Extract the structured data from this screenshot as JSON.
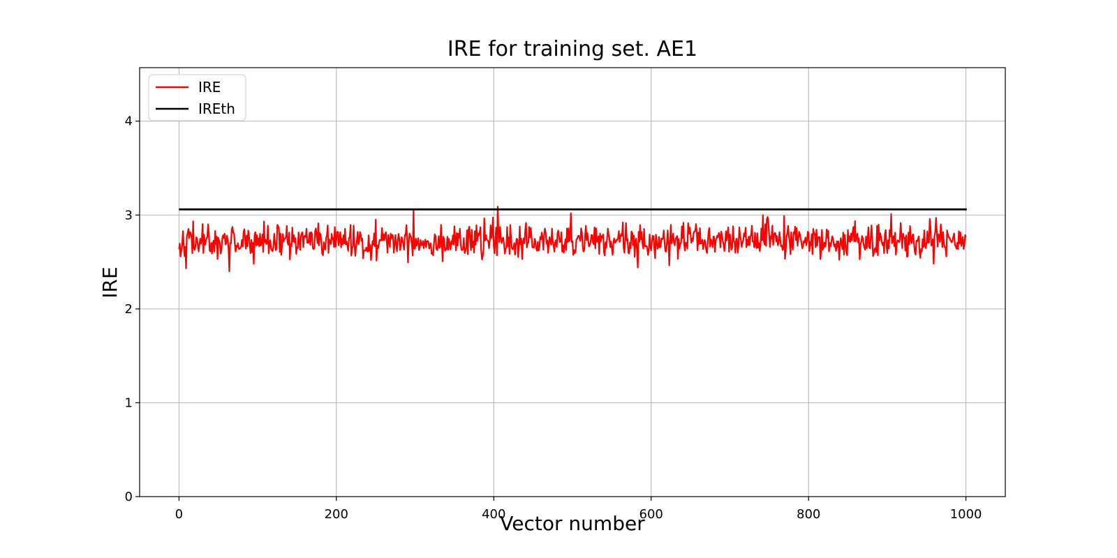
{
  "colors": {
    "ire_line": "#ff0000",
    "ireth_line": "#000000",
    "grid": "#b4b4b4",
    "axis": "#000000",
    "legend_border": "#cccccc",
    "background": "#ffffff",
    "text": "#000000"
  },
  "chart_data": {
    "type": "line",
    "title": "IRE for training set. AE1",
    "xlabel": "Vector number",
    "ylabel": "IRE",
    "xlim": [
      -50,
      1050
    ],
    "ylim": [
      0,
      4.57
    ],
    "xticks": [
      0,
      200,
      400,
      600,
      800,
      1000
    ],
    "yticks": [
      0,
      1,
      2,
      3,
      4
    ],
    "grid": true,
    "legend_position": "upper left",
    "series": [
      {
        "name": "IRE",
        "type": "noisy_line",
        "color": "#ff0000",
        "x_start": 0,
        "x_end": 1000,
        "n_points": 1001,
        "mean": 2.72,
        "std": 0.088,
        "clip": [
          2.43,
          2.99
        ],
        "seed": 42,
        "spikes": [
          [
            64,
            2.4
          ],
          [
            95,
            2.48
          ],
          [
            298,
            3.05
          ],
          [
            405,
            3.09
          ],
          [
            498,
            3.02
          ],
          [
            583,
            2.44
          ],
          [
            742,
            3.0
          ],
          [
            748,
            2.98
          ],
          [
            769,
            2.99
          ],
          [
            905,
            3.01
          ],
          [
            962,
            2.97
          ]
        ]
      },
      {
        "name": "IREth",
        "type": "hline",
        "color": "#000000",
        "value": 3.06,
        "x_start": 0,
        "x_end": 1001
      }
    ]
  }
}
